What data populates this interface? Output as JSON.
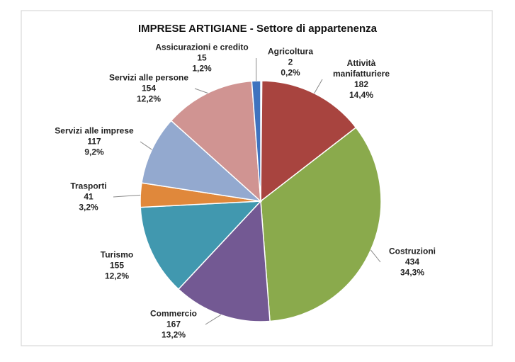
{
  "chart_data": {
    "type": "pie",
    "title": "IMPRESE ARTIGIANE - Settore di appartenenza",
    "categories": [
      "Agricoltura",
      "Attività manifatturiere",
      "Costruzioni",
      "Commercio",
      "Turismo",
      "Trasporti",
      "Servizi alle imprese",
      "Servizi alle persone",
      "Assicurazioni e credito"
    ],
    "values": [
      2,
      182,
      434,
      167,
      155,
      41,
      117,
      154,
      15
    ],
    "percentages": [
      {
        "value": 0.2,
        "label": "0,2%"
      },
      {
        "value": 14.4,
        "label": "14,4%"
      },
      {
        "value": 34.3,
        "label": "34,3%"
      },
      {
        "value": 13.2,
        "label": "13,2%"
      },
      {
        "value": 12.2,
        "label": "12,2%"
      },
      {
        "value": 3.2,
        "label": "3,2%"
      },
      {
        "value": 9.2,
        "label": "9,2%"
      },
      {
        "value": 12.2,
        "label": "12,2%"
      },
      {
        "value": 1.2,
        "label": "1,2%"
      }
    ],
    "colors": [
      "#4f79c0",
      "#a8443f",
      "#8aaa4c",
      "#735993",
      "#4198af",
      "#e0883b",
      "#93a9cf",
      "#d09492",
      "#3f73bf"
    ]
  }
}
